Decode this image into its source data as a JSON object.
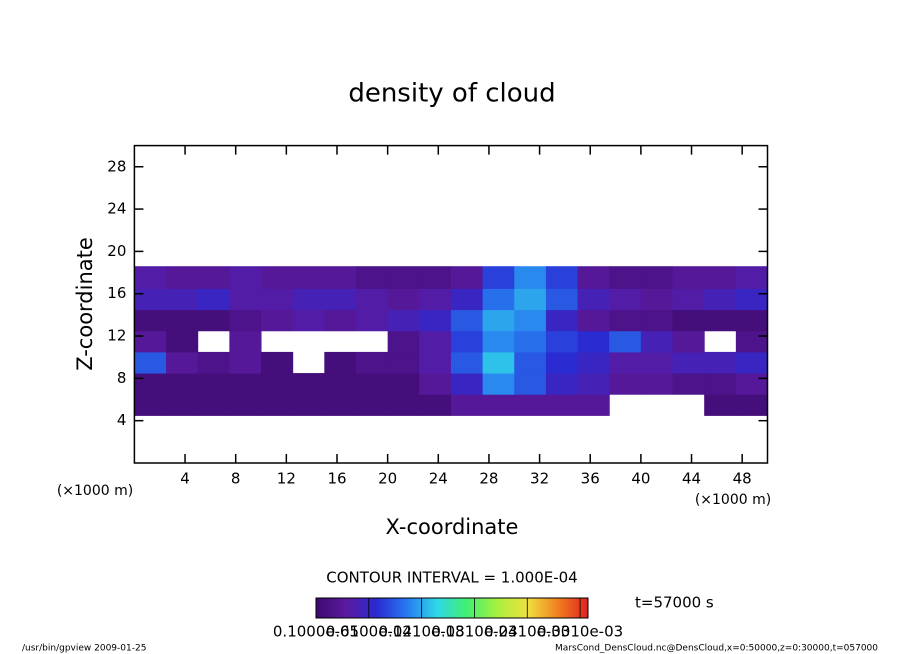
{
  "chart_data": {
    "type": "heatmap",
    "title": "density of cloud",
    "xlabel": "X-coordinate",
    "ylabel": "Z-coordinate",
    "xunit": "(×1000 m)",
    "yunit": "(×1000 m)",
    "annotation": "CONTOUR INTERVAL = 1.000E-04",
    "time_label": "t=57000 s",
    "footer_left": "/usr/bin/gpview  2009-01-25",
    "footer_right": "MarsCond_DensCloud.nc@DensCloud,x=0:50000,z=0:30000,t=057000",
    "xlim": [
      0,
      50
    ],
    "ylim": [
      0,
      30
    ],
    "xticks": [
      4,
      8,
      12,
      16,
      20,
      24,
      28,
      32,
      36,
      40,
      44,
      48
    ],
    "yticks": [
      4,
      8,
      12,
      16,
      20,
      24,
      28
    ],
    "x_bins": [
      0,
      2.5,
      5,
      7.5,
      10,
      12.5,
      15,
      17.5,
      20,
      22.5,
      25,
      27.5,
      30,
      32.5,
      35,
      37.5,
      40,
      42.5,
      45,
      47.5,
      50
    ],
    "z_bins": [
      4.5,
      6.5,
      8.5,
      10.5,
      12.5,
      14.5,
      16.5,
      18.6
    ],
    "z": [
      [
        1e-05,
        1e-05,
        1e-05,
        1e-05,
        1e-05,
        1e-05,
        1e-05,
        1e-05,
        1e-05,
        1e-05,
        3e-05,
        3e-05,
        3e-05,
        3e-05,
        3e-05,
        null,
        null,
        null,
        1e-05,
        1e-05
      ],
      [
        1e-05,
        1e-05,
        1e-05,
        1e-05,
        1e-05,
        1e-05,
        1e-05,
        1e-05,
        1e-05,
        3e-05,
        6e-05,
        0.00011,
        9e-05,
        6e-05,
        5e-05,
        3e-05,
        3e-05,
        2e-05,
        2e-05,
        3e-05
      ],
      [
        9e-05,
        3e-05,
        2e-05,
        3e-05,
        1e-05,
        null,
        1e-05,
        2e-05,
        2e-05,
        4e-05,
        9e-05,
        0.00013,
        9e-05,
        7e-05,
        6e-05,
        4e-05,
        4e-05,
        5e-05,
        5e-05,
        6e-05
      ],
      [
        3e-05,
        1e-05,
        null,
        3e-05,
        null,
        null,
        null,
        null,
        2e-05,
        4e-05,
        8e-05,
        0.00011,
        0.0001,
        8e-05,
        7e-05,
        9e-05,
        5e-05,
        3e-05,
        null,
        2e-05
      ],
      [
        1e-05,
        1e-05,
        1e-05,
        2e-05,
        3e-05,
        4e-05,
        3e-05,
        4e-05,
        5e-05,
        6e-05,
        9e-05,
        0.00012,
        0.00011,
        6e-05,
        3e-05,
        2e-05,
        2e-05,
        1e-05,
        1e-05,
        1e-05
      ],
      [
        5e-05,
        5e-05,
        6e-05,
        4e-05,
        4e-05,
        5e-05,
        5e-05,
        4e-05,
        3e-05,
        4e-05,
        6e-05,
        0.0001,
        0.00012,
        9e-05,
        5e-05,
        4e-05,
        3e-05,
        4e-05,
        5e-05,
        6e-05
      ],
      [
        4e-05,
        3e-05,
        3e-05,
        4e-05,
        3e-05,
        3e-05,
        3e-05,
        2e-05,
        2e-05,
        2e-05,
        3e-05,
        8e-05,
        0.00011,
        8e-05,
        3e-05,
        2e-05,
        2e-05,
        3e-05,
        3e-05,
        4e-05
      ]
    ],
    "clim": [
      1e-06,
      0.00031
    ],
    "colorbar_ticks": [
      {
        "value": 1e-06,
        "label": "0.1000e-05"
      },
      {
        "value": 6.1e-05,
        "label": "0.6100e-04"
      },
      {
        "value": 0.000121,
        "label": "0.1210e-03"
      },
      {
        "value": 0.000181,
        "label": "0.1810e-03"
      },
      {
        "value": 0.000241,
        "label": "0.2410e-03"
      },
      {
        "value": 0.000301,
        "label": "0.3010e-03"
      }
    ],
    "colormap": [
      "#3c0a6e",
      "#5a1aa0",
      "#2a2ad0",
      "#2878f0",
      "#30d8e8",
      "#40f070",
      "#a8f040",
      "#f0e040",
      "#f08020",
      "#e02020"
    ]
  }
}
